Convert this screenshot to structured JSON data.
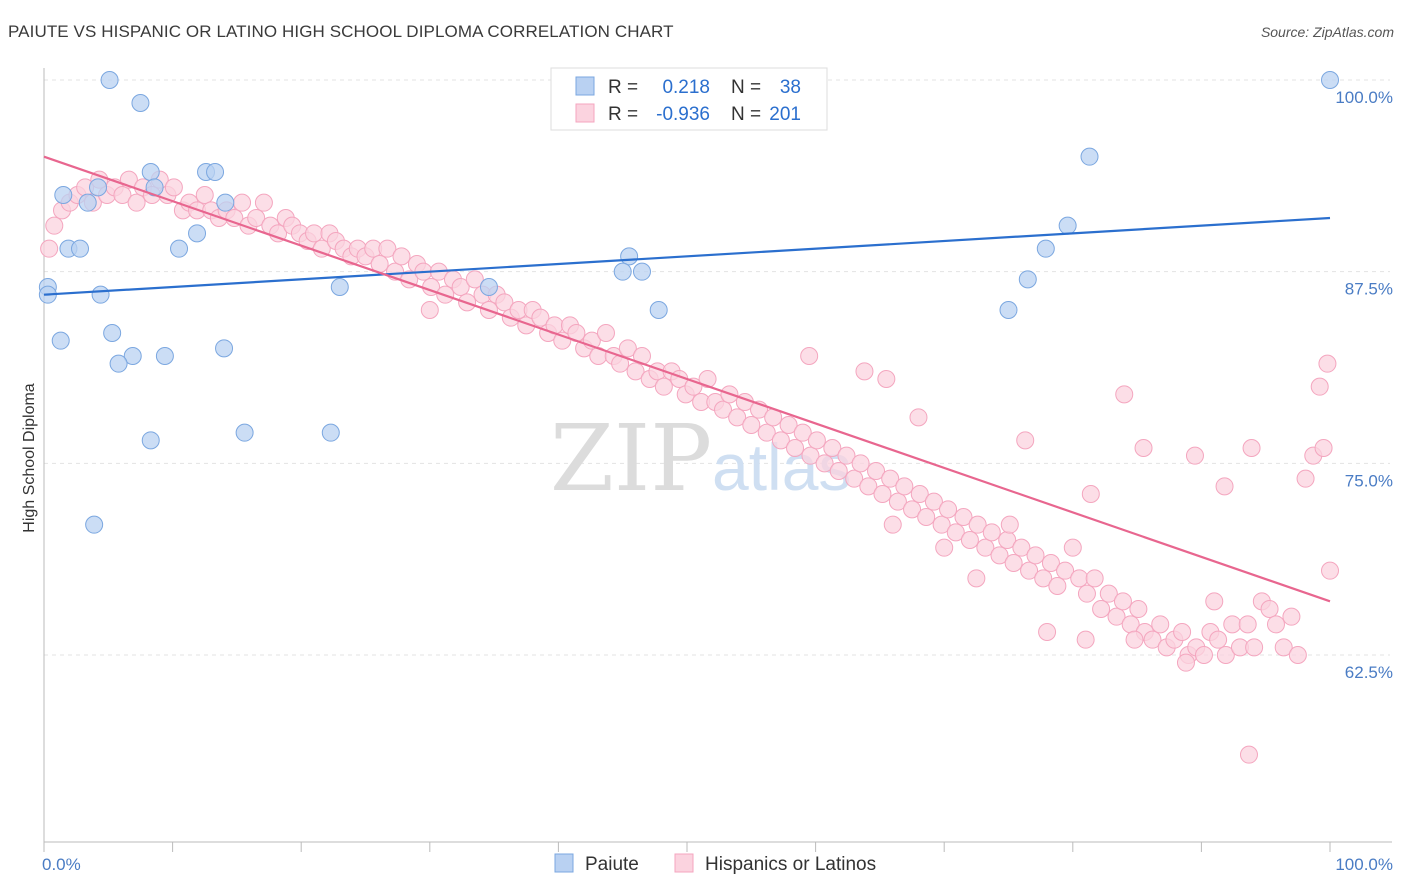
{
  "title": "PAIUTE VS HISPANIC OR LATINO HIGH SCHOOL DIPLOMA CORRELATION CHART",
  "source": "Source: ZipAtlas.com",
  "watermark": {
    "zip": "ZIP",
    "atlas": "atlas"
  },
  "chart_data": {
    "type": "scatter",
    "title": "PAIUTE VS HISPANIC OR LATINO HIGH SCHOOL DIPLOMA CORRELATION CHART",
    "xlabel": "",
    "ylabel": "High School Diploma",
    "xlim": [
      0,
      100
    ],
    "ylim": [
      52.5,
      101
    ],
    "x_tick_labels": {
      "left": "0.0%",
      "right": "100.0%"
    },
    "y_ticks": [
      {
        "value": 100.0,
        "label": "100.0%"
      },
      {
        "value": 87.5,
        "label": "87.5%"
      },
      {
        "value": 75.0,
        "label": "75.0%"
      },
      {
        "value": 62.5,
        "label": "62.5%"
      }
    ],
    "grid": true,
    "legend_position": "top-center",
    "legend": [
      {
        "r_label": "R =",
        "r_value": "0.218",
        "n_label": "N =",
        "n_value": "38",
        "color": "#7ba7e0"
      },
      {
        "r_label": "R =",
        "r_value": "-0.936",
        "n_label": "N =",
        "n_value": "201",
        "color": "#f4a6bf"
      }
    ],
    "series": [
      {
        "name": "Paiute",
        "color": "#7ba7e0",
        "fill": "#b9d1f2",
        "line_color": "#2b6fce",
        "trend": [
          [
            0,
            86.0
          ],
          [
            100,
            91.0
          ]
        ],
        "points": [
          [
            5.1,
            100.0
          ],
          [
            100,
            100.0
          ],
          [
            7.5,
            98.5
          ],
          [
            0.3,
            86.5
          ],
          [
            0.3,
            86.0
          ],
          [
            1.5,
            92.5
          ],
          [
            1.9,
            89.0
          ],
          [
            2.8,
            89.0
          ],
          [
            3.4,
            92.0
          ],
          [
            4.2,
            93.0
          ],
          [
            4.4,
            86.0
          ],
          [
            1.3,
            83.0
          ],
          [
            5.3,
            83.5
          ],
          [
            6.9,
            82.0
          ],
          [
            5.8,
            81.5
          ],
          [
            9.4,
            82.0
          ],
          [
            8.3,
            94.0
          ],
          [
            8.6,
            93.0
          ],
          [
            10.5,
            89.0
          ],
          [
            11.9,
            90.0
          ],
          [
            12.6,
            94.0
          ],
          [
            13.3,
            94.0
          ],
          [
            14.1,
            92.0
          ],
          [
            14.0,
            82.5
          ],
          [
            15.6,
            77.0
          ],
          [
            8.3,
            76.5
          ],
          [
            22.3,
            77.0
          ],
          [
            3.9,
            71.0
          ],
          [
            23.0,
            86.5
          ],
          [
            34.6,
            86.5
          ],
          [
            45.5,
            88.5
          ],
          [
            45.0,
            87.5
          ],
          [
            46.5,
            87.5
          ],
          [
            47.8,
            85.0
          ],
          [
            75.0,
            85.0
          ],
          [
            76.5,
            87.0
          ],
          [
            77.9,
            89.0
          ],
          [
            79.6,
            90.5
          ],
          [
            81.3,
            95.0
          ]
        ]
      },
      {
        "name": "Hispanics or Latinos",
        "color": "#f4a6bf",
        "fill": "#fbd3df",
        "line_color": "#e8668f",
        "trend": [
          [
            0,
            95.0
          ],
          [
            100,
            66.0
          ]
        ],
        "points": [
          [
            0.4,
            89.0
          ],
          [
            0.8,
            90.5
          ],
          [
            1.4,
            91.5
          ],
          [
            2.0,
            92.0
          ],
          [
            2.6,
            92.5
          ],
          [
            3.2,
            93.0
          ],
          [
            3.8,
            92.0
          ],
          [
            4.3,
            93.5
          ],
          [
            4.9,
            92.5
          ],
          [
            5.5,
            93.0
          ],
          [
            6.1,
            92.5
          ],
          [
            6.6,
            93.5
          ],
          [
            7.2,
            92.0
          ],
          [
            7.7,
            93.0
          ],
          [
            8.4,
            92.5
          ],
          [
            9.0,
            93.5
          ],
          [
            9.6,
            92.5
          ],
          [
            10.1,
            93.0
          ],
          [
            10.8,
            91.5
          ],
          [
            11.3,
            92.0
          ],
          [
            11.9,
            91.5
          ],
          [
            12.5,
            92.5
          ],
          [
            13.0,
            91.5
          ],
          [
            13.6,
            91.0
          ],
          [
            14.2,
            91.5
          ],
          [
            14.8,
            91.0
          ],
          [
            15.4,
            92.0
          ],
          [
            15.9,
            90.5
          ],
          [
            16.5,
            91.0
          ],
          [
            17.1,
            92.0
          ],
          [
            17.6,
            90.5
          ],
          [
            18.2,
            90.0
          ],
          [
            18.8,
            91.0
          ],
          [
            19.3,
            90.5
          ],
          [
            19.9,
            90.0
          ],
          [
            20.5,
            89.5
          ],
          [
            21.0,
            90.0
          ],
          [
            21.6,
            89.0
          ],
          [
            22.2,
            90.0
          ],
          [
            22.7,
            89.5
          ],
          [
            23.3,
            89.0
          ],
          [
            23.9,
            88.5
          ],
          [
            24.4,
            89.0
          ],
          [
            25.0,
            88.5
          ],
          [
            25.6,
            89.0
          ],
          [
            26.1,
            88.0
          ],
          [
            26.7,
            89.0
          ],
          [
            27.3,
            87.5
          ],
          [
            27.8,
            88.5
          ],
          [
            28.4,
            87.0
          ],
          [
            29.0,
            88.0
          ],
          [
            29.5,
            87.5
          ],
          [
            30.1,
            86.5
          ],
          [
            30.7,
            87.5
          ],
          [
            31.2,
            86.0
          ],
          [
            31.8,
            87.0
          ],
          [
            32.4,
            86.5
          ],
          [
            32.9,
            85.5
          ],
          [
            33.5,
            87.0
          ],
          [
            34.1,
            86.0
          ],
          [
            34.6,
            85.0
          ],
          [
            35.2,
            86.0
          ],
          [
            35.8,
            85.5
          ],
          [
            36.3,
            84.5
          ],
          [
            36.9,
            85.0
          ],
          [
            37.5,
            84.0
          ],
          [
            38.0,
            85.0
          ],
          [
            38.6,
            84.5
          ],
          [
            39.2,
            83.5
          ],
          [
            39.7,
            84.0
          ],
          [
            40.3,
            83.0
          ],
          [
            40.9,
            84.0
          ],
          [
            41.4,
            83.5
          ],
          [
            42.0,
            82.5
          ],
          [
            42.6,
            83.0
          ],
          [
            43.1,
            82.0
          ],
          [
            43.7,
            83.5
          ],
          [
            44.3,
            82.0
          ],
          [
            44.8,
            81.5
          ],
          [
            45.4,
            82.5
          ],
          [
            46.0,
            81.0
          ],
          [
            46.5,
            82.0
          ],
          [
            47.1,
            80.5
          ],
          [
            47.7,
            81.0
          ],
          [
            48.2,
            80.0
          ],
          [
            48.8,
            81.0
          ],
          [
            49.4,
            80.5
          ],
          [
            49.9,
            79.5
          ],
          [
            50.5,
            80.0
          ],
          [
            51.1,
            79.0
          ],
          [
            51.6,
            80.5
          ],
          [
            52.2,
            79.0
          ],
          [
            52.8,
            78.5
          ],
          [
            53.3,
            79.5
          ],
          [
            53.9,
            78.0
          ],
          [
            54.5,
            79.0
          ],
          [
            55.0,
            77.5
          ],
          [
            55.6,
            78.5
          ],
          [
            56.2,
            77.0
          ],
          [
            56.7,
            78.0
          ],
          [
            57.3,
            76.5
          ],
          [
            57.9,
            77.5
          ],
          [
            58.4,
            76.0
          ],
          [
            59.0,
            77.0
          ],
          [
            59.6,
            75.5
          ],
          [
            60.1,
            76.5
          ],
          [
            60.7,
            75.0
          ],
          [
            61.3,
            76.0
          ],
          [
            61.8,
            74.5
          ],
          [
            62.4,
            75.5
          ],
          [
            63.0,
            74.0
          ],
          [
            63.5,
            75.0
          ],
          [
            64.1,
            73.5
          ],
          [
            64.7,
            74.5
          ],
          [
            65.2,
            73.0
          ],
          [
            65.8,
            74.0
          ],
          [
            66.4,
            72.5
          ],
          [
            66.9,
            73.5
          ],
          [
            67.5,
            72.0
          ],
          [
            68.1,
            73.0
          ],
          [
            68.6,
            71.5
          ],
          [
            69.2,
            72.5
          ],
          [
            69.8,
            71.0
          ],
          [
            70.3,
            72.0
          ],
          [
            70.9,
            70.5
          ],
          [
            71.5,
            71.5
          ],
          [
            72.0,
            70.0
          ],
          [
            72.6,
            71.0
          ],
          [
            73.2,
            69.5
          ],
          [
            73.7,
            70.5
          ],
          [
            74.3,
            69.0
          ],
          [
            74.9,
            70.0
          ],
          [
            75.4,
            68.5
          ],
          [
            76.0,
            69.5
          ],
          [
            76.6,
            68.0
          ],
          [
            77.1,
            69.0
          ],
          [
            77.7,
            67.5
          ],
          [
            78.3,
            68.5
          ],
          [
            78.8,
            67.0
          ],
          [
            79.4,
            68.0
          ],
          [
            80.0,
            69.5
          ],
          [
            80.5,
            67.5
          ],
          [
            81.1,
            66.5
          ],
          [
            81.7,
            67.5
          ],
          [
            82.2,
            65.5
          ],
          [
            82.8,
            66.5
          ],
          [
            83.4,
            65.0
          ],
          [
            83.9,
            66.0
          ],
          [
            84.5,
            64.5
          ],
          [
            85.1,
            65.5
          ],
          [
            85.6,
            64.0
          ],
          [
            86.2,
            63.5
          ],
          [
            86.8,
            64.5
          ],
          [
            87.3,
            63.0
          ],
          [
            87.9,
            63.5
          ],
          [
            88.5,
            64.0
          ],
          [
            89.0,
            62.5
          ],
          [
            89.6,
            63.0
          ],
          [
            90.2,
            62.5
          ],
          [
            90.7,
            64.0
          ],
          [
            91.3,
            63.5
          ],
          [
            91.9,
            62.5
          ],
          [
            92.4,
            64.5
          ],
          [
            93.0,
            63.0
          ],
          [
            93.6,
            64.5
          ],
          [
            94.1,
            63.0
          ],
          [
            94.7,
            66.0
          ],
          [
            95.3,
            65.5
          ],
          [
            95.8,
            64.5
          ],
          [
            96.4,
            63.0
          ],
          [
            97.0,
            65.0
          ],
          [
            97.5,
            62.5
          ],
          [
            98.1,
            74.0
          ],
          [
            98.7,
            75.5
          ],
          [
            99.2,
            80.0
          ],
          [
            99.8,
            81.5
          ],
          [
            99.5,
            76.0
          ],
          [
            100.0,
            68.0
          ],
          [
            30.0,
            85.0
          ],
          [
            59.5,
            82.0
          ],
          [
            63.8,
            81.0
          ],
          [
            65.5,
            80.5
          ],
          [
            68.0,
            78.0
          ],
          [
            76.3,
            76.5
          ],
          [
            84.0,
            79.5
          ],
          [
            85.5,
            76.0
          ],
          [
            89.5,
            75.5
          ],
          [
            91.8,
            73.5
          ],
          [
            93.9,
            76.0
          ],
          [
            81.4,
            73.0
          ],
          [
            66.0,
            71.0
          ],
          [
            70.0,
            69.5
          ],
          [
            72.5,
            67.5
          ],
          [
            75.1,
            71.0
          ],
          [
            78.0,
            64.0
          ],
          [
            81.0,
            63.5
          ],
          [
            84.8,
            63.5
          ],
          [
            88.8,
            62.0
          ],
          [
            91.0,
            66.0
          ],
          [
            93.7,
            56.0
          ]
        ]
      }
    ]
  }
}
